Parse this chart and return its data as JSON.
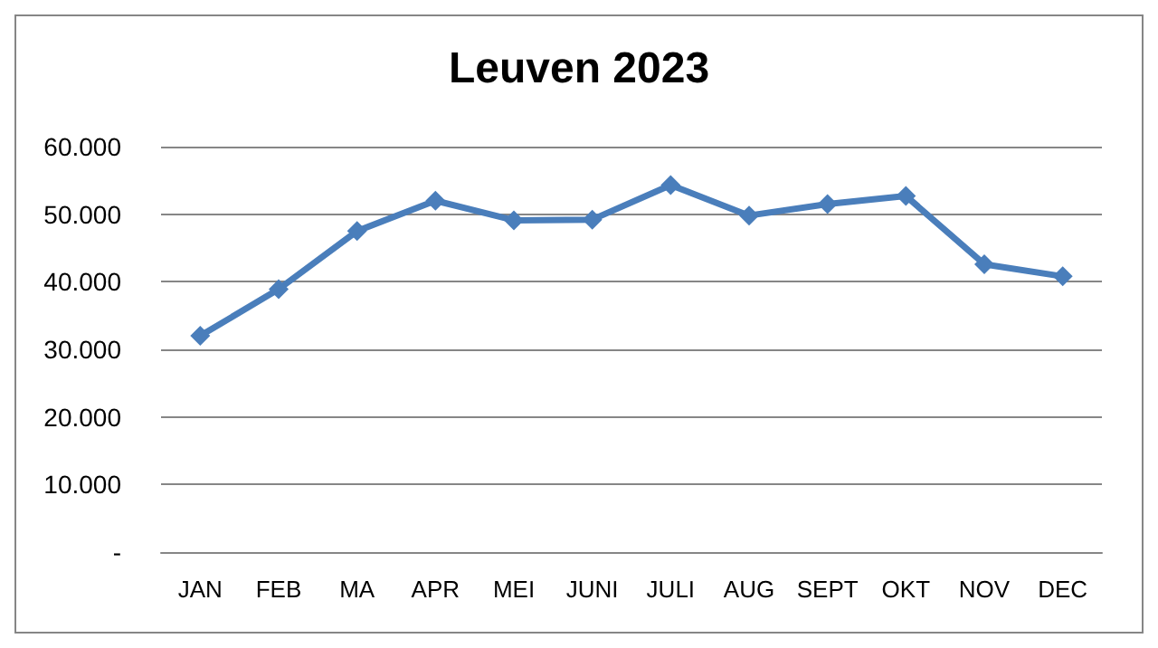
{
  "chart_data": {
    "type": "line",
    "title": "Leuven 2023",
    "categories": [
      "JAN",
      "FEB",
      "MA",
      "APR",
      "MEI",
      "JUNI",
      "JULI",
      "AUG",
      "SEPT",
      "OKT",
      "NOV",
      "DEC"
    ],
    "series": [
      {
        "color": "#4a7ebb",
        "values": [
          32000,
          38900,
          47500,
          52000,
          49100,
          49200,
          54300,
          49800,
          51500,
          52700,
          42600,
          40800
        ]
      }
    ],
    "ylim": [
      0,
      60000
    ],
    "yticks": [
      {
        "value": 0,
        "label": "-"
      },
      {
        "value": 10000,
        "label": "10.000"
      },
      {
        "value": 20000,
        "label": "20.000"
      },
      {
        "value": 30000,
        "label": "30.000"
      },
      {
        "value": 40000,
        "label": "40.000"
      },
      {
        "value": 50000,
        "label": "50.000"
      },
      {
        "value": 60000,
        "label": "60.000"
      }
    ],
    "grid": "y",
    "marker": "diamond",
    "line_style": "solid"
  }
}
